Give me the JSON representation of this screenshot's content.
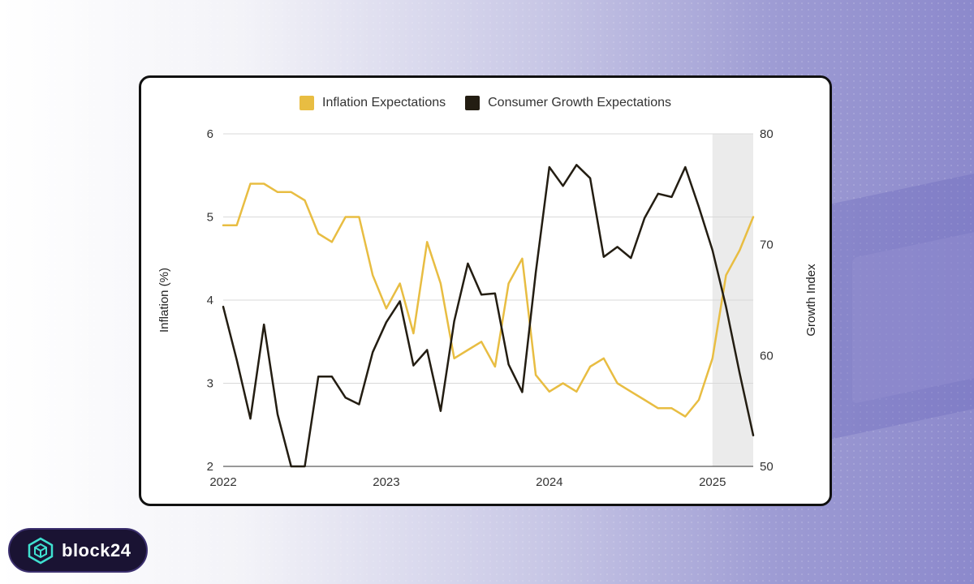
{
  "brand": {
    "name": "block24"
  },
  "colors": {
    "inflation": "#e8bd42",
    "growth": "#231d12",
    "grid": "#d9d9d9",
    "shade": "#ebebeb"
  },
  "chart_data": {
    "type": "line",
    "x_tick_labels": [
      "2022",
      "2023",
      "2024",
      "2025"
    ],
    "y_left": {
      "label": "Inflation (%)",
      "ticks": [
        2,
        3,
        4,
        5,
        6
      ],
      "range": [
        2,
        6
      ]
    },
    "y_right": {
      "label": "Growth Index",
      "ticks": [
        50,
        60,
        70,
        80
      ],
      "range": [
        50,
        80
      ]
    },
    "x_range": [
      "2022-01",
      "2025-04"
    ],
    "shaded_region": [
      "2025-01",
      "2025-04"
    ],
    "x": [
      "2022-01",
      "2022-02",
      "2022-03",
      "2022-04",
      "2022-05",
      "2022-06",
      "2022-07",
      "2022-08",
      "2022-09",
      "2022-10",
      "2022-11",
      "2022-12",
      "2023-01",
      "2023-02",
      "2023-03",
      "2023-04",
      "2023-05",
      "2023-06",
      "2023-07",
      "2023-08",
      "2023-09",
      "2023-10",
      "2023-11",
      "2023-12",
      "2024-01",
      "2024-02",
      "2024-03",
      "2024-04",
      "2024-05",
      "2024-06",
      "2024-07",
      "2024-08",
      "2024-09",
      "2024-10",
      "2024-11",
      "2024-12",
      "2025-01",
      "2025-02",
      "2025-03",
      "2025-04"
    ],
    "series": [
      {
        "name": "Inflation Expectations",
        "axis": "left",
        "values": [
          4.9,
          4.9,
          5.4,
          5.4,
          5.3,
          5.3,
          5.2,
          4.8,
          4.7,
          5.0,
          5.0,
          4.3,
          3.9,
          4.2,
          3.6,
          4.7,
          4.2,
          3.3,
          3.4,
          3.5,
          3.2,
          4.2,
          4.5,
          3.1,
          2.9,
          3.0,
          2.9,
          3.2,
          3.3,
          3.0,
          2.9,
          2.8,
          2.7,
          2.7,
          2.6,
          2.8,
          3.3,
          4.3,
          4.6,
          5.0
        ]
      },
      {
        "name": "Consumer Growth Expectations",
        "axis": "right",
        "values": [
          64.4,
          59.6,
          54.3,
          62.8,
          54.7,
          50.0,
          50.0,
          58.1,
          58.1,
          56.2,
          55.6,
          60.3,
          63.0,
          64.9,
          59.1,
          60.5,
          55.0,
          63.1,
          68.3,
          65.5,
          65.6,
          59.2,
          56.7,
          67.5,
          77.0,
          75.3,
          77.2,
          76.0,
          68.9,
          69.8,
          68.8,
          72.4,
          74.6,
          74.3,
          77.0,
          73.4,
          69.5,
          64.4,
          58.4,
          52.8
        ]
      }
    ]
  }
}
